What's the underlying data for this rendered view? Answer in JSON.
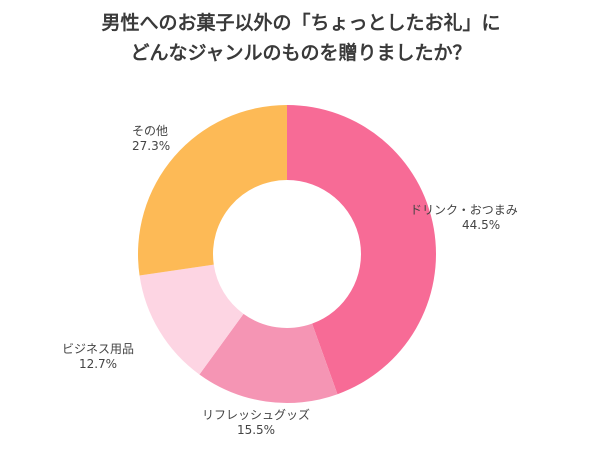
{
  "chart_data": {
    "type": "pie",
    "donut": true,
    "title": [
      "男性へのお菓子以外の「ちょっとしたお礼」に",
      "どんなジャンルのものを贈りましたか？"
    ],
    "categories": [
      "ドリンク・おつまみ",
      "リフレッシュグッズ",
      "ビジネス用品",
      "その他"
    ],
    "values": [
      44.5,
      15.5,
      12.7,
      27.3
    ],
    "value_labels": [
      "44.5%",
      "15.5%",
      "12.7%",
      "27.3%"
    ],
    "colors": [
      "#f76b96",
      "#f595b4",
      "#fdd5e3",
      "#fdba56"
    ],
    "start": "top",
    "direction": "clockwise"
  }
}
